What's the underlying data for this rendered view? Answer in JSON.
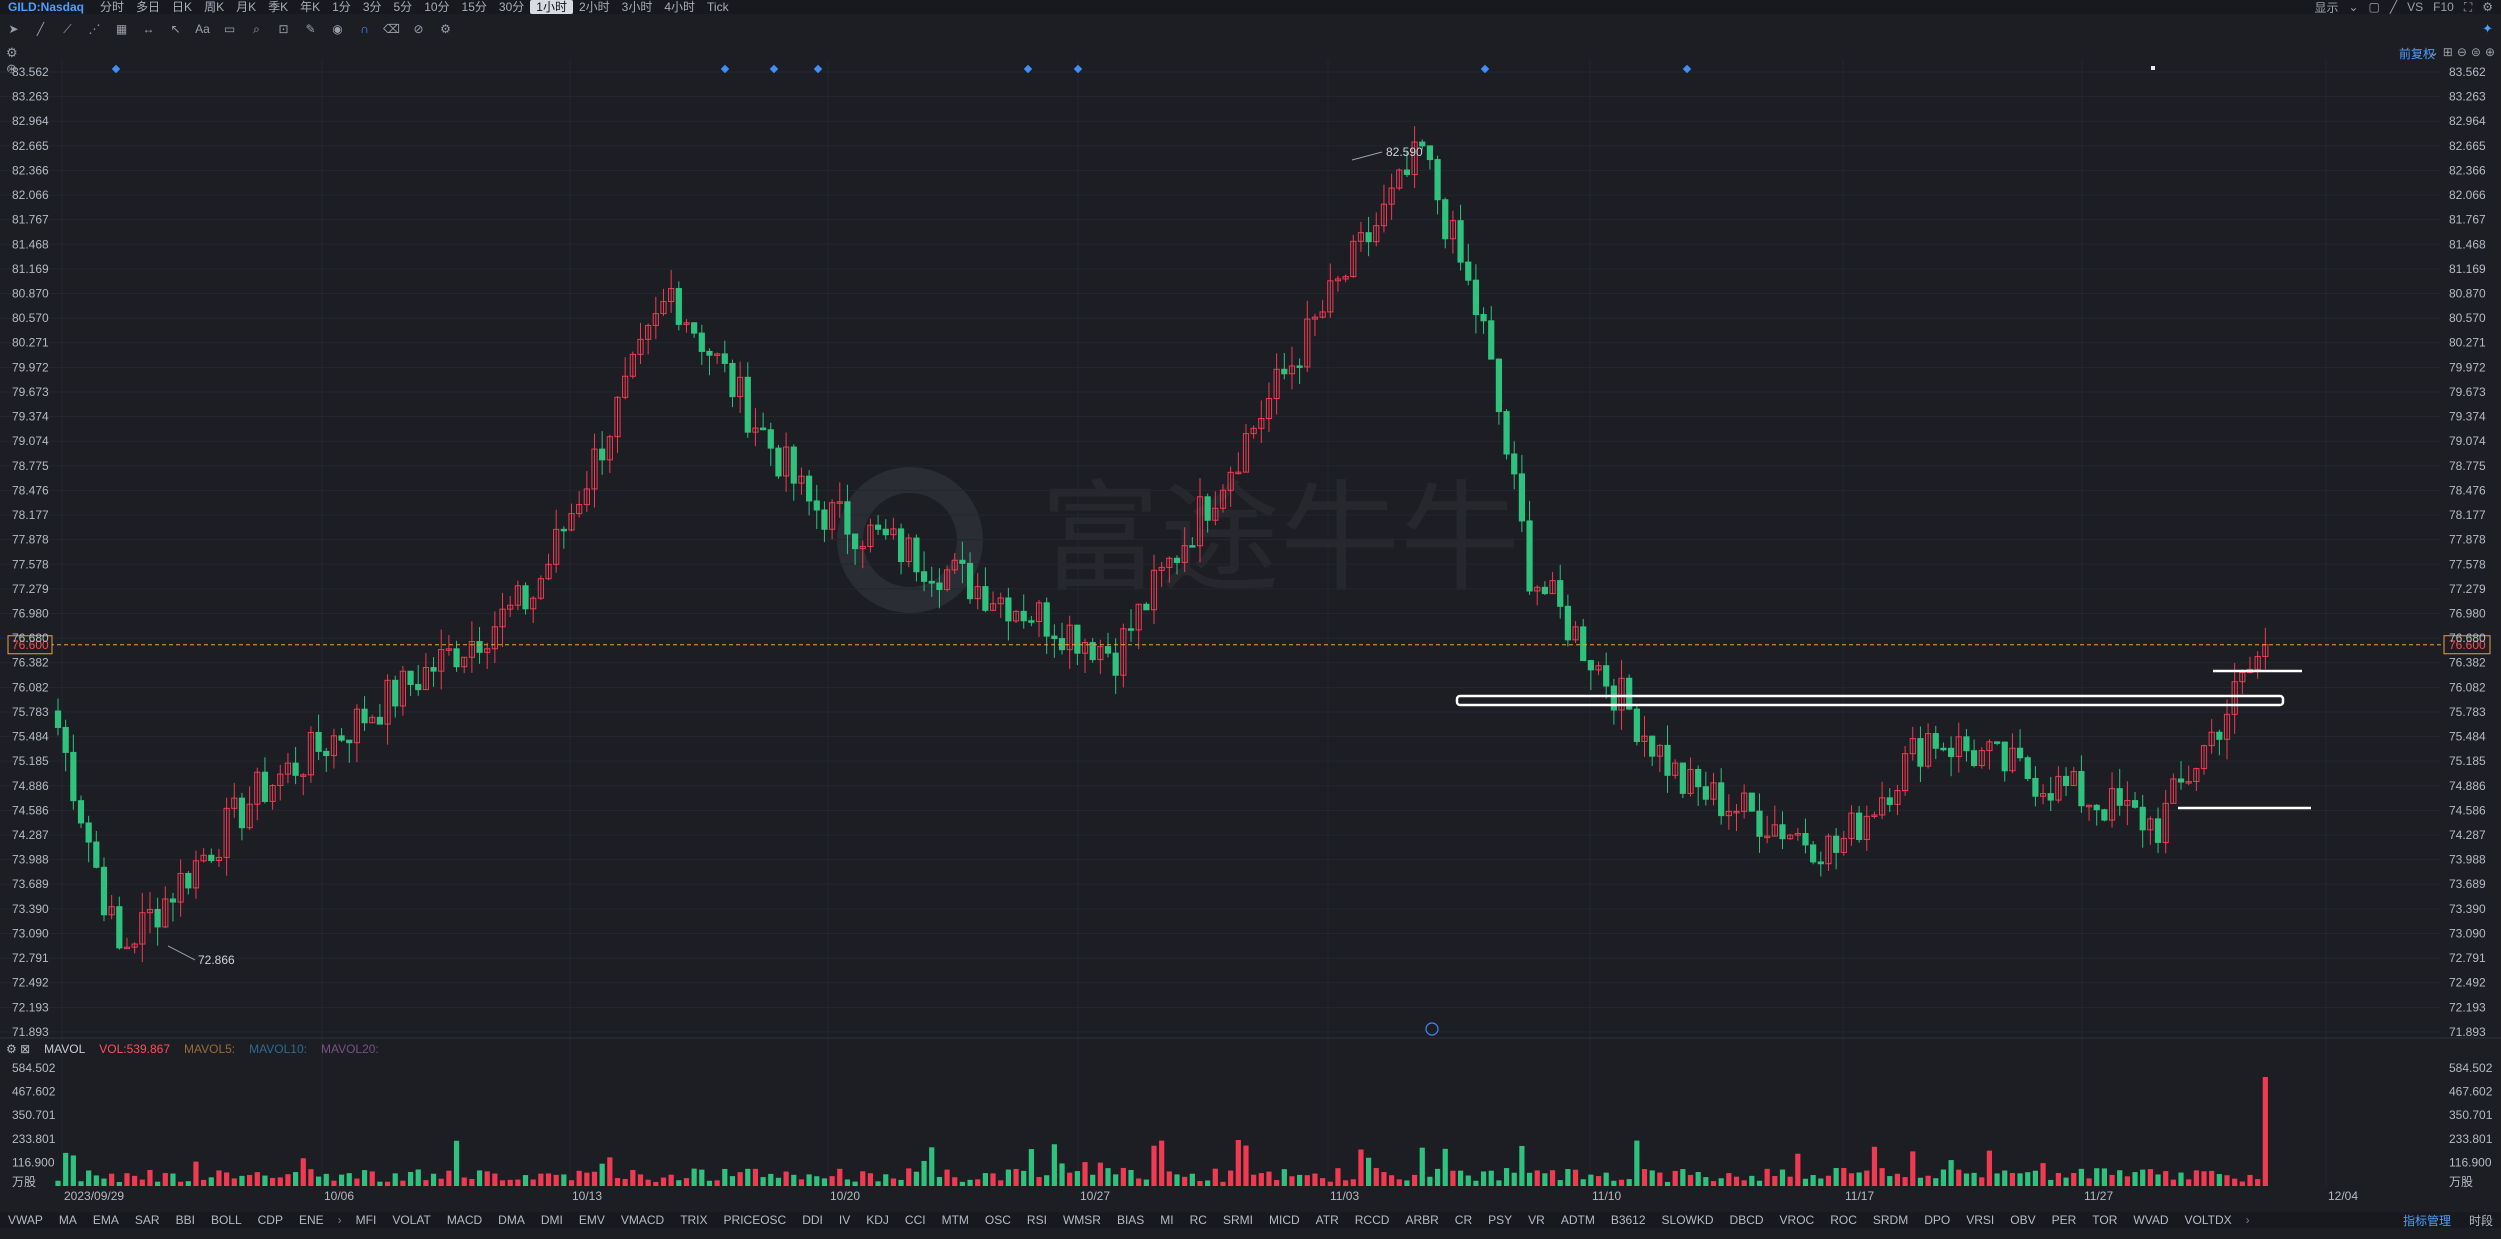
{
  "symbol": "GILD:Nasdaq",
  "periods": [
    "分时",
    "多日",
    "日K",
    "周K",
    "月K",
    "季K",
    "年K",
    "1分",
    "3分",
    "5分",
    "10分",
    "15分",
    "30分",
    "1小时",
    "2小时",
    "3小时",
    "4小时",
    "Tick"
  ],
  "active_period": "1小时",
  "top_right": {
    "display": "显示",
    "vs": "VS",
    "f10": "F10"
  },
  "adjust_label": "前复权",
  "volume_header": {
    "name": "MAVOL",
    "vol": "VOL:539.867",
    "ma5": "MAVOL5:",
    "ma10": "MAVOL10:",
    "ma20": "MAVOL20:"
  },
  "volume_unit": "万股",
  "indicator_tabs_left": [
    "VWAP",
    "MA",
    "EMA",
    "SAR",
    "BBI",
    "BOLL",
    "CDP",
    "ENE"
  ],
  "indicator_tabs_right": [
    "MFI",
    "VOLAT",
    "MACD",
    "DMA",
    "DMI",
    "EMV",
    "VMACD",
    "TRIX",
    "PRICEOSC",
    "DDI",
    "IV",
    "KDJ",
    "CCI",
    "MTM",
    "OSC",
    "RSI",
    "WMSR",
    "BIAS",
    "MI",
    "RC",
    "SRMI",
    "MICD",
    "ATR",
    "RCCD",
    "ARBR",
    "CR",
    "PSY",
    "VR",
    "ADTM",
    "B3612",
    "SLOWKD",
    "DBCD",
    "VROC",
    "ROC",
    "SRDM",
    "DPO",
    "VRSI",
    "OBV",
    "PER",
    "TOR",
    "WVAD",
    "VOLTDX"
  ],
  "indicator_manage": "指标管理",
  "indicator_time": "时段",
  "colors": {
    "up": "#f03a52",
    "down": "#2ec27e",
    "accent": "#4a9fff",
    "current_price": "#e8a33d"
  },
  "chart_data": {
    "type": "candlestick",
    "price_axis_ticks": [
      "83.562",
      "83.263",
      "82.964",
      "82.665",
      "82.366",
      "82.066",
      "81.767",
      "81.468",
      "81.169",
      "80.870",
      "80.570",
      "80.271",
      "79.972",
      "79.673",
      "79.374",
      "79.074",
      "78.775",
      "78.476",
      "78.177",
      "77.878",
      "77.578",
      "77.279",
      "76.980",
      "76.680",
      "76.382",
      "76.082",
      "75.783",
      "75.484",
      "75.185",
      "74.886",
      "74.586",
      "74.287",
      "73.988",
      "73.689",
      "73.390",
      "73.090",
      "72.791",
      "72.492",
      "72.193",
      "71.893"
    ],
    "ylim": [
      71.893,
      83.562
    ],
    "current_price": "76.600",
    "annotations": {
      "high": "82.590",
      "low": "72.866"
    },
    "date_labels": [
      "2023/09/29",
      "10/06",
      "10/13",
      "10/20",
      "10/27",
      "11/03",
      "11/10",
      "11/17",
      "11/27",
      "12/04"
    ],
    "volume_axis_ticks": [
      "584.502",
      "467.602",
      "350.701",
      "233.801",
      "116.900"
    ],
    "volume_ylim": [
      0,
      584.502
    ],
    "last_volume": 539.867,
    "key_points": [
      {
        "x": "2023/09/29",
        "close": 75.6
      },
      {
        "x": "10/03",
        "close": 72.866
      },
      {
        "x": "10/06",
        "close": 74.8
      },
      {
        "x": "10/13",
        "close": 77.2
      },
      {
        "x": "10/17",
        "close": 80.9
      },
      {
        "x": "10/20",
        "close": 78.3
      },
      {
        "x": "10/24",
        "close": 77.4
      },
      {
        "x": "10/27",
        "close": 76.5
      },
      {
        "x": "11/01",
        "close": 80.8
      },
      {
        "x": "11/03",
        "close": 82.59
      },
      {
        "x": "11/06",
        "close": 80.4
      },
      {
        "x": "11/07",
        "close": 77.5
      },
      {
        "x": "11/09",
        "close": 74.9
      },
      {
        "x": "11/14",
        "close": 74.1
      },
      {
        "x": "11/17",
        "close": 75.5
      },
      {
        "x": "11/27",
        "close": 74.4
      },
      {
        "x": "12/01",
        "close": 76.6
      }
    ]
  }
}
